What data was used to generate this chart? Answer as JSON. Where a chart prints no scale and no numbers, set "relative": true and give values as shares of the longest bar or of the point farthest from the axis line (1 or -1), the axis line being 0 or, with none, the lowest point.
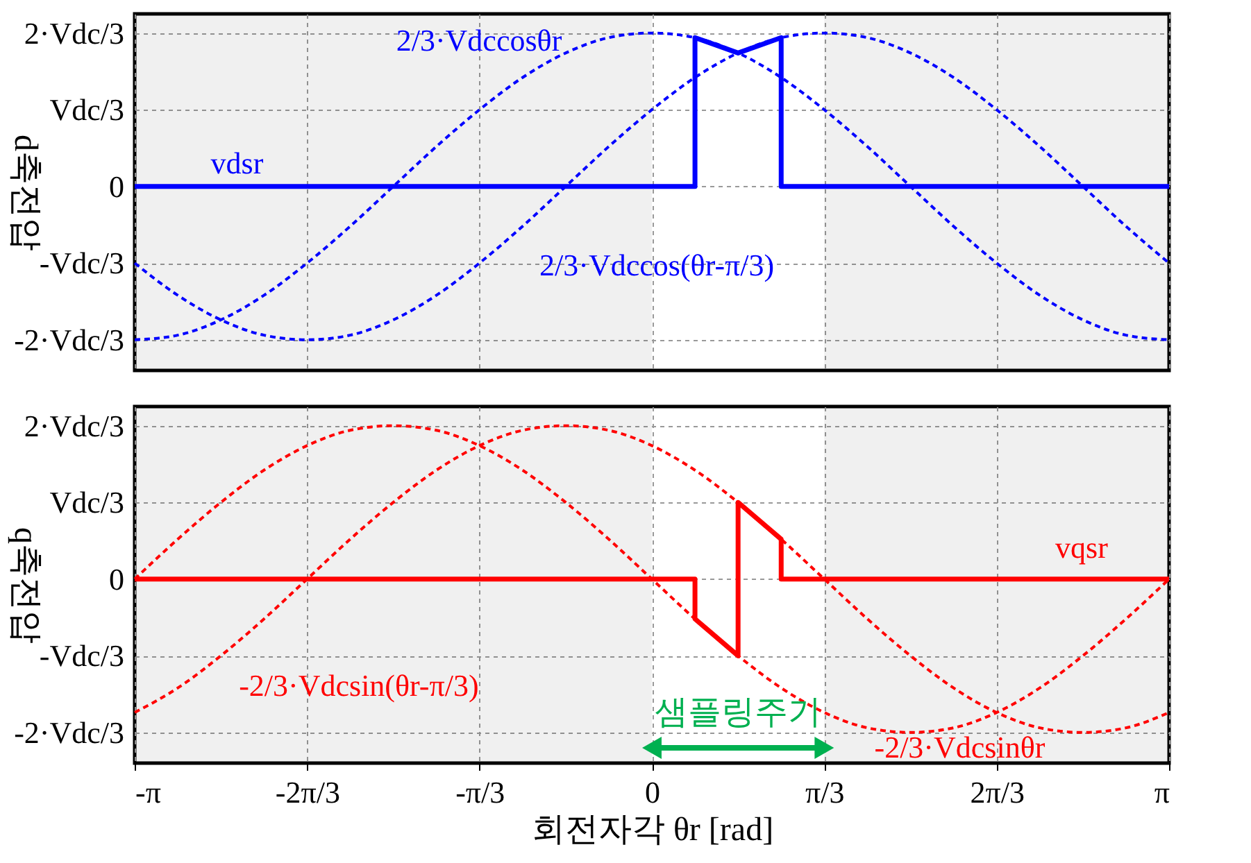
{
  "chart_data": [
    {
      "type": "line",
      "relative": true,
      "ylabel": "d축전압",
      "xlim": [
        -3.1416,
        3.1416
      ],
      "tick_labels": "y",
      "grid": true,
      "xticks": [
        {
          "value": -3.1416,
          "label": null
        },
        {
          "value": -2.0944,
          "label": null
        },
        {
          "value": -1.0472,
          "label": null
        },
        {
          "value": 0,
          "label": null
        },
        {
          "value": 1.0472,
          "label": null
        },
        {
          "value": 2.0944,
          "label": null
        },
        {
          "value": 3.1416,
          "label": null
        }
      ],
      "annotations": [
        "2·Vdc/3",
        "Vdc/3",
        "0",
        "-Vdc/3",
        "-2·Vdc/3"
      ],
      "bands": [
        {
          "axis": "x",
          "from": -3.1416,
          "to": 0,
          "color": "#f0f0f0"
        },
        {
          "axis": "x",
          "from": 1.0472,
          "to": 3.1416,
          "color": "#f0f0f0"
        }
      ],
      "x": [
        -3.1416,
        -2.8798,
        -2.618,
        -2.3562,
        -2.0944,
        -1.8326,
        -1.5708,
        -1.309,
        -1.0472,
        -0.7854,
        -0.5236,
        -0.2618,
        0,
        0.2618,
        0.5236,
        0.7854,
        1.0472,
        1.309,
        1.5708,
        1.8326,
        2.0944,
        2.3562,
        2.618,
        2.8798,
        3.1416
      ],
      "series": [
        {
          "name": "2/3·Vdccosθr",
          "color": "#0000ff",
          "line_style": "dashed",
          "values": [
            -1,
            -0.97,
            -0.87,
            -0.71,
            -0.5,
            -0.26,
            0,
            0.26,
            0.5,
            0.71,
            0.87,
            0.97,
            1,
            0.97,
            0.87,
            0.71,
            0.5,
            0.26,
            0,
            -0.26,
            -0.5,
            -0.71,
            -0.87,
            -0.97,
            -1
          ]
        },
        {
          "name": "2/3·Vdccos(θr-π/3)",
          "color": "#0000ff",
          "line_style": "dashed",
          "values": [
            -0.5,
            -0.71,
            -0.87,
            -0.97,
            -1,
            -0.97,
            -0.87,
            -0.71,
            -0.5,
            -0.26,
            0,
            0.26,
            0.5,
            0.71,
            0.87,
            0.97,
            1,
            0.97,
            0.87,
            0.71,
            0.5,
            0.26,
            0,
            -0.26,
            -0.5
          ]
        },
        {
          "name": "vdsr",
          "color": "#0000ff",
          "line_style": "solid",
          "x": [
            -3.1416,
            0.2618,
            0.2618,
            0.5236,
            0.7854,
            0.7854,
            3.1416
          ],
          "values": [
            0,
            0,
            0.97,
            0.87,
            0.97,
            0,
            0
          ]
        }
      ]
    },
    {
      "type": "line",
      "relative": true,
      "ylabel": "q축전압",
      "xlabel": "회전자각 θr [rad]",
      "xlim": [
        -3.1416,
        3.1416
      ],
      "grid": true,
      "xticks": [
        {
          "value": -3.1416,
          "label": "-π"
        },
        {
          "value": -2.0944,
          "label": "-2π/3"
        },
        {
          "value": -1.0472,
          "label": "-π/3"
        },
        0,
        {
          "value": 1.0472,
          "label": "π/3"
        },
        {
          "value": 2.0944,
          "label": "2π/3"
        },
        {
          "value": 3.1416,
          "label": "π"
        }
      ],
      "annotations": [
        "2·Vdc/3",
        "Vdc/3",
        "0",
        "-Vdc/3",
        "-2·Vdc/3",
        "샘플링주기"
      ],
      "bands": [
        {
          "axis": "x",
          "from": -3.1416,
          "to": 0,
          "color": "#f0f0f0"
        },
        {
          "axis": "x",
          "from": 1.0472,
          "to": 3.1416,
          "color": "#f0f0f0"
        }
      ],
      "x": [
        -3.1416,
        -2.8798,
        -2.618,
        -2.3562,
        -2.0944,
        -1.8326,
        -1.5708,
        -1.309,
        -1.0472,
        -0.7854,
        -0.5236,
        -0.2618,
        0,
        0.2618,
        0.5236,
        0.7854,
        1.0472,
        1.309,
        1.5708,
        1.8326,
        2.0944,
        2.3562,
        2.618,
        2.8798,
        3.1416
      ],
      "series": [
        {
          "name": "-2/3·Vdcsinθr",
          "color": "#ff0000",
          "line_style": "dashed",
          "values": [
            0,
            0.26,
            0.5,
            0.71,
            0.87,
            0.97,
            1,
            0.97,
            0.87,
            0.71,
            0.5,
            0.26,
            0,
            -0.26,
            -0.5,
            -0.71,
            -0.87,
            -0.97,
            -1,
            -0.97,
            -0.87,
            -0.71,
            -0.5,
            -0.26,
            0
          ]
        },
        {
          "name": "-2/3·Vdcsin(θr-π/3)",
          "color": "#ff0000",
          "line_style": "dashed",
          "values": [
            -0.87,
            -0.71,
            -0.5,
            -0.26,
            0,
            0.26,
            0.5,
            0.71,
            0.87,
            0.97,
            1,
            0.97,
            0.87,
            0.71,
            0.5,
            0.26,
            0,
            -0.26,
            -0.5,
            -0.71,
            -0.87,
            -0.97,
            -1,
            -0.97,
            -0.87
          ]
        },
        {
          "name": "vqsr",
          "color": "#ff0000",
          "line_style": "solid",
          "x": [
            -3.1416,
            0.2618,
            0.2618,
            0.5236,
            0.5236,
            0.7854,
            0.7854,
            3.1416
          ],
          "values": [
            0,
            0,
            -0.26,
            -0.5,
            0.5,
            0.26,
            0,
            0
          ]
        }
      ]
    }
  ]
}
